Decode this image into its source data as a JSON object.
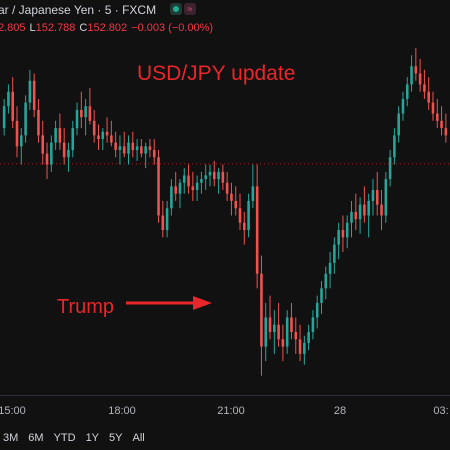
{
  "header": {
    "symbol_title": "ar / Japanese Yen · 5 · FXCM",
    "ohlc": {
      "high_value": "2.805",
      "low_label": "L",
      "low_value": "152.788",
      "close_label": "C",
      "close_value": "152.802",
      "change_value": "−0.003 (−0.00%)"
    },
    "status_icons": [
      "market-open-icon",
      "alert-icon"
    ]
  },
  "annotations": {
    "title": "USD/JPY update",
    "trump_label": "Trump"
  },
  "time_axis": {
    "labels": [
      "15:00",
      "18:00",
      "21:00",
      "28",
      "03:"
    ]
  },
  "range_buttons": [
    "3M",
    "6M",
    "YTD",
    "1Y",
    "5Y",
    "All"
  ],
  "colors": {
    "background": "#111111",
    "up_candle": "#26a69a",
    "down_candle": "#ef5350",
    "annotation": "#e8262b",
    "price_line": "#e8262b"
  },
  "chart_data": {
    "type": "candlestick",
    "series": [
      {
        "name": "",
        "candles": [
          [
            152.9,
            152.98,
            152.88,
            152.96
          ],
          [
            152.96,
            153.02,
            152.94,
            153.0
          ],
          [
            153.0,
            153.04,
            152.9,
            152.92
          ],
          [
            152.92,
            152.96,
            152.82,
            152.85
          ],
          [
            152.85,
            152.9,
            152.8,
            152.88
          ],
          [
            152.88,
            152.99,
            152.86,
            152.97
          ],
          [
            152.97,
            153.06,
            152.95,
            153.03
          ],
          [
            153.03,
            153.05,
            152.93,
            152.95
          ],
          [
            152.95,
            152.98,
            152.86,
            152.88
          ],
          [
            152.88,
            152.92,
            152.8,
            152.83
          ],
          [
            152.83,
            152.86,
            152.76,
            152.8
          ],
          [
            152.8,
            152.88,
            152.78,
            152.86
          ],
          [
            152.86,
            152.92,
            152.84,
            152.9
          ],
          [
            152.9,
            152.94,
            152.84,
            152.86
          ],
          [
            152.86,
            152.9,
            152.8,
            152.82
          ],
          [
            152.82,
            152.86,
            152.78,
            152.84
          ],
          [
            152.84,
            152.92,
            152.82,
            152.9
          ],
          [
            152.9,
            152.97,
            152.88,
            152.95
          ],
          [
            152.95,
            153.0,
            152.9,
            152.93
          ],
          [
            152.93,
            152.98,
            152.88,
            152.96
          ],
          [
            152.96,
            153.01,
            152.91,
            152.92
          ],
          [
            152.92,
            152.95,
            152.86,
            152.88
          ],
          [
            152.88,
            152.91,
            152.84,
            152.87
          ],
          [
            152.87,
            152.9,
            152.84,
            152.89
          ],
          [
            152.89,
            152.93,
            152.86,
            152.88
          ],
          [
            152.88,
            152.92,
            152.85,
            152.86
          ],
          [
            152.86,
            152.89,
            152.82,
            152.84
          ],
          [
            152.84,
            152.88,
            152.8,
            152.85
          ],
          [
            152.85,
            152.89,
            152.82,
            152.83
          ],
          [
            152.83,
            152.88,
            152.8,
            152.86
          ],
          [
            152.86,
            152.89,
            152.82,
            152.84
          ],
          [
            152.84,
            152.87,
            152.81,
            152.85
          ],
          [
            152.85,
            152.87,
            152.82,
            152.83
          ],
          [
            152.83,
            152.86,
            152.79,
            152.85
          ],
          [
            152.85,
            152.87,
            152.82,
            152.84
          ],
          [
            152.84,
            152.87,
            152.8,
            152.82
          ],
          [
            152.82,
            152.84,
            152.64,
            152.66
          ],
          [
            152.66,
            152.7,
            152.6,
            152.62
          ],
          [
            152.62,
            152.7,
            152.6,
            152.68
          ],
          [
            152.68,
            152.76,
            152.66,
            152.74
          ],
          [
            152.74,
            152.78,
            152.7,
            152.72
          ],
          [
            152.72,
            152.76,
            152.68,
            152.75
          ],
          [
            152.75,
            152.79,
            152.72,
            152.77
          ],
          [
            152.77,
            152.8,
            152.72,
            152.74
          ],
          [
            152.74,
            152.78,
            152.7,
            152.73
          ],
          [
            152.73,
            152.77,
            152.7,
            152.75
          ],
          [
            152.75,
            152.78,
            152.72,
            152.76
          ],
          [
            152.76,
            152.8,
            152.73,
            152.77
          ],
          [
            152.77,
            152.8,
            152.74,
            152.78
          ],
          [
            152.78,
            152.81,
            152.74,
            152.76
          ],
          [
            152.76,
            152.79,
            152.72,
            152.78
          ],
          [
            152.78,
            152.8,
            152.73,
            152.75
          ],
          [
            152.75,
            152.78,
            152.7,
            152.72
          ],
          [
            152.72,
            152.75,
            152.66,
            152.7
          ],
          [
            152.7,
            152.74,
            152.66,
            152.68
          ],
          [
            152.68,
            152.72,
            152.62,
            152.64
          ],
          [
            152.64,
            152.67,
            152.58,
            152.62
          ],
          [
            152.62,
            152.72,
            152.6,
            152.7
          ],
          [
            152.7,
            152.8,
            152.68,
            152.74
          ],
          [
            152.74,
            152.8,
            152.46,
            152.5
          ],
          [
            152.5,
            152.55,
            152.22,
            152.3
          ],
          [
            152.3,
            152.42,
            152.26,
            152.38
          ],
          [
            152.38,
            152.44,
            152.32,
            152.34
          ],
          [
            152.34,
            152.4,
            152.28,
            152.36
          ],
          [
            152.36,
            152.42,
            152.3,
            152.32
          ],
          [
            152.32,
            152.36,
            152.26,
            152.3
          ],
          [
            152.3,
            152.4,
            152.28,
            152.38
          ],
          [
            152.38,
            152.42,
            152.32,
            152.34
          ],
          [
            152.34,
            152.38,
            152.28,
            152.32
          ],
          [
            152.32,
            152.36,
            152.26,
            152.28
          ],
          [
            152.28,
            152.33,
            152.25,
            152.31
          ],
          [
            152.31,
            152.36,
            152.29,
            152.34
          ],
          [
            152.34,
            152.4,
            152.32,
            152.38
          ],
          [
            152.38,
            152.44,
            152.35,
            152.42
          ],
          [
            152.42,
            152.48,
            152.39,
            152.46
          ],
          [
            152.46,
            152.52,
            152.43,
            152.5
          ],
          [
            152.5,
            152.56,
            152.46,
            152.53
          ],
          [
            152.53,
            152.6,
            152.5,
            152.58
          ],
          [
            152.58,
            152.64,
            152.54,
            152.62
          ],
          [
            152.62,
            152.66,
            152.56,
            152.6
          ],
          [
            152.6,
            152.66,
            152.57,
            152.64
          ],
          [
            152.64,
            152.7,
            152.6,
            152.67
          ],
          [
            152.67,
            152.72,
            152.62,
            152.65
          ],
          [
            152.65,
            152.71,
            152.61,
            152.69
          ],
          [
            152.69,
            152.74,
            152.64,
            152.66
          ],
          [
            152.66,
            152.72,
            152.6,
            152.7
          ],
          [
            152.7,
            152.76,
            152.66,
            152.73
          ],
          [
            152.73,
            152.78,
            152.66,
            152.69
          ],
          [
            152.69,
            152.73,
            152.62,
            152.66
          ],
          [
            152.66,
            152.78,
            152.64,
            152.76
          ],
          [
            152.76,
            152.84,
            152.74,
            152.82
          ],
          [
            152.82,
            152.9,
            152.8,
            152.88
          ],
          [
            152.88,
            152.96,
            152.86,
            152.94
          ],
          [
            152.94,
            153.0,
            152.92,
            152.98
          ],
          [
            152.98,
            153.04,
            152.96,
            153.02
          ],
          [
            153.02,
            153.1,
            153.0,
            153.07
          ],
          [
            153.07,
            153.12,
            153.03,
            153.05
          ],
          [
            153.05,
            153.09,
            153.0,
            153.02
          ],
          [
            153.02,
            153.06,
            152.98,
            153.0
          ],
          [
            153.0,
            153.04,
            152.95,
            152.97
          ],
          [
            152.97,
            153.0,
            152.92,
            152.94
          ],
          [
            152.94,
            152.98,
            152.9,
            152.92
          ],
          [
            152.92,
            152.96,
            152.88,
            152.9
          ],
          [
            152.9,
            152.94,
            152.86,
            152.88
          ]
        ]
      }
    ],
    "current_price": 152.802,
    "x_labels": [
      "15:00",
      "18:00",
      "21:00",
      "28",
      "03:"
    ],
    "ylim": [
      152.2,
      153.12
    ],
    "grid": false,
    "legend": "none"
  }
}
